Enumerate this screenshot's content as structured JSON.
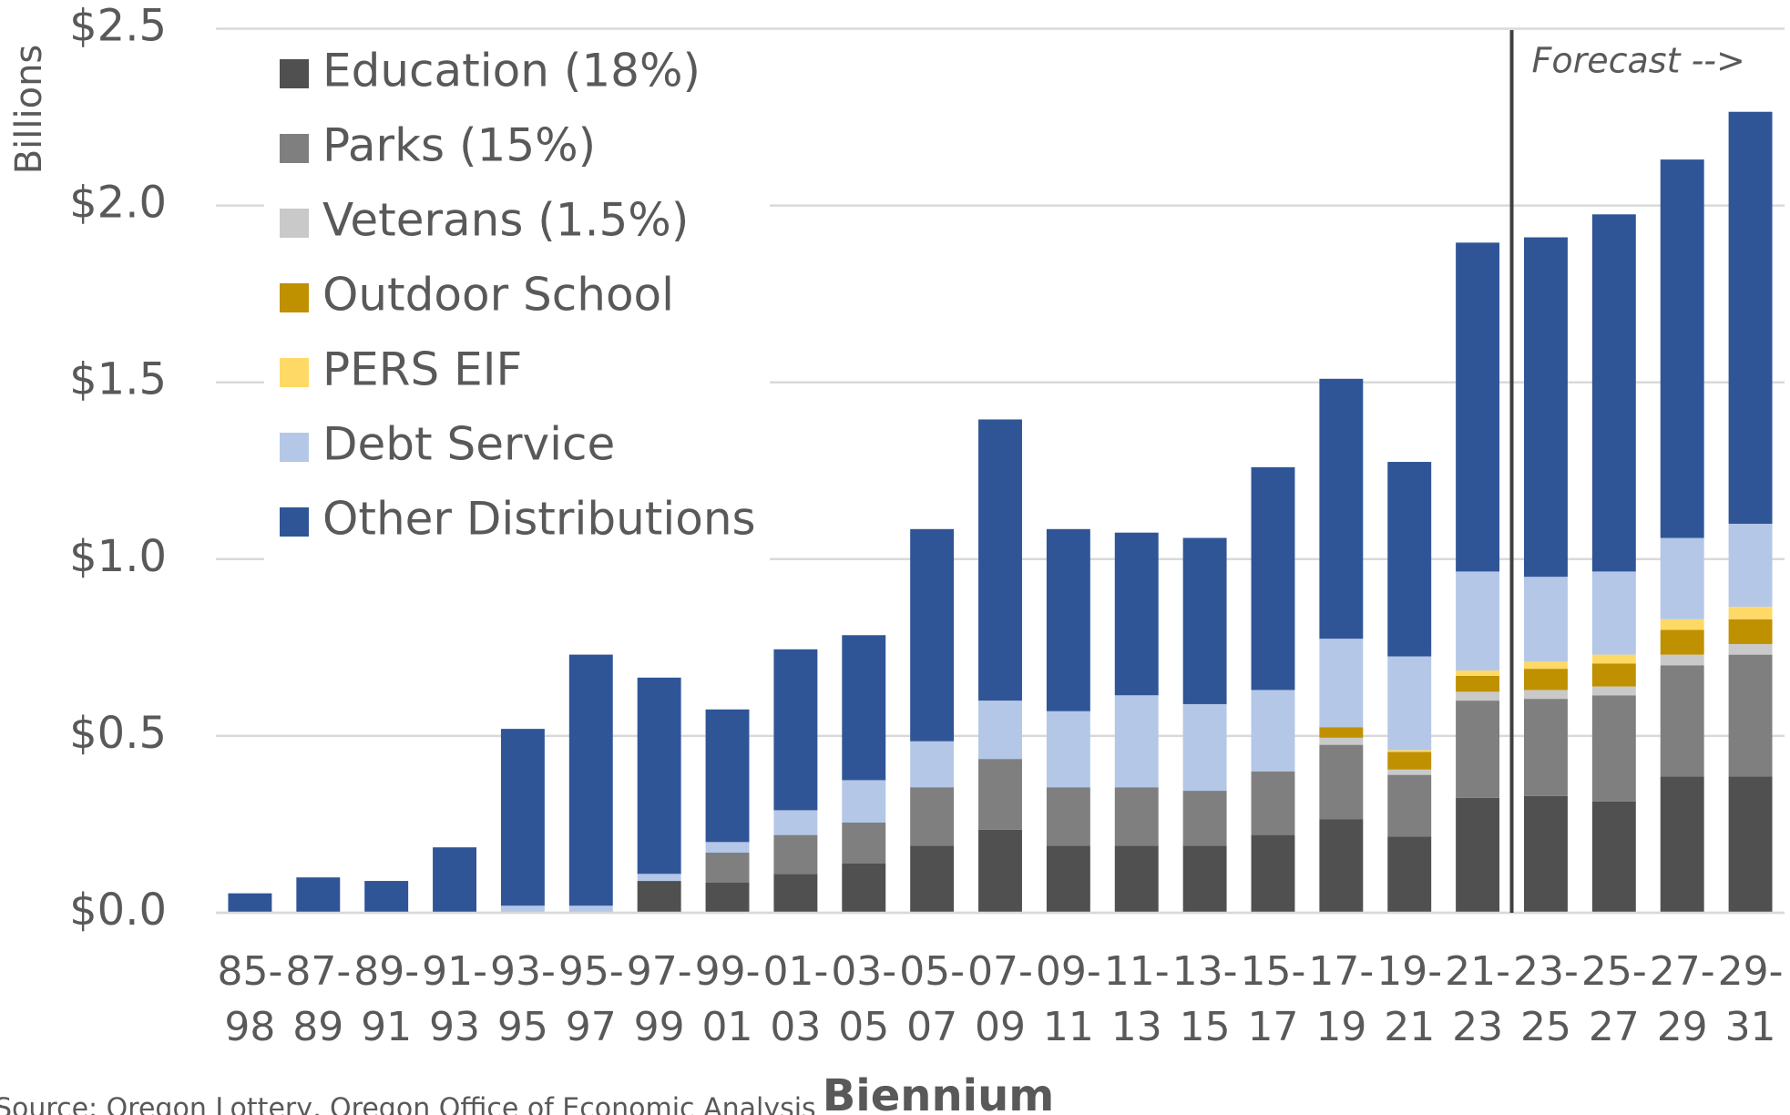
{
  "chart_data": {
    "type": "stacked_bar",
    "ylabel": "Billions",
    "xlabel": "Biennium",
    "annotation": "Forecast -->",
    "source": "Source: Oregon Lottery, Oregon Office of Economic Analysis",
    "categories": [
      [
        "85-",
        "98"
      ],
      [
        "87-",
        "89"
      ],
      [
        "89-",
        "91"
      ],
      [
        "91-",
        "93"
      ],
      [
        "93-",
        "95"
      ],
      [
        "95-",
        "97"
      ],
      [
        "97-",
        "99"
      ],
      [
        "99-",
        "01"
      ],
      [
        "01-",
        "03"
      ],
      [
        "03-",
        "05"
      ],
      [
        "05-",
        "07"
      ],
      [
        "07-",
        "09"
      ],
      [
        "09-",
        "11"
      ],
      [
        "11-",
        "13"
      ],
      [
        "13-",
        "15"
      ],
      [
        "15-",
        "17"
      ],
      [
        "17-",
        "19"
      ],
      [
        "19-",
        "21"
      ],
      [
        "21-",
        "23"
      ],
      [
        "23-",
        "25"
      ],
      [
        "25-",
        "27"
      ],
      [
        "27-",
        "29"
      ],
      [
        "29-",
        "31"
      ]
    ],
    "series": [
      {
        "name": "Education (18%)",
        "color": "#505050",
        "values": [
          0,
          0,
          0,
          0,
          0,
          0,
          0.09,
          0.085,
          0.11,
          0.14,
          0.19,
          0.235,
          0.19,
          0.19,
          0.19,
          0.22,
          0.265,
          0.215,
          0.325,
          0.33,
          0.315,
          0.385,
          0.385
        ]
      },
      {
        "name": "Parks (15%)",
        "color": "#7f7f7f",
        "values": [
          0,
          0,
          0,
          0,
          0,
          0,
          0,
          0.085,
          0.11,
          0.115,
          0.165,
          0.2,
          0.165,
          0.165,
          0.155,
          0.18,
          0.21,
          0.175,
          0.275,
          0.275,
          0.3,
          0.315,
          0.345
        ]
      },
      {
        "name": "Veterans (1.5%)",
        "color": "#c9c9c9",
        "values": [
          0,
          0,
          0,
          0,
          0,
          0,
          0,
          0,
          0,
          0,
          0,
          0,
          0,
          0,
          0,
          0,
          0.02,
          0.015,
          0.025,
          0.025,
          0.025,
          0.03,
          0.03
        ]
      },
      {
        "name": "Outdoor School",
        "color": "#bf9000",
        "values": [
          0,
          0,
          0,
          0,
          0,
          0,
          0,
          0,
          0,
          0,
          0,
          0,
          0,
          0,
          0,
          0,
          0.03,
          0.05,
          0.045,
          0.06,
          0.065,
          0.07,
          0.07
        ]
      },
      {
        "name": "PERS EIF",
        "color": "#ffd966",
        "values": [
          0,
          0,
          0,
          0,
          0,
          0,
          0,
          0,
          0,
          0,
          0,
          0,
          0,
          0,
          0,
          0,
          0,
          0.005,
          0.015,
          0.02,
          0.025,
          0.03,
          0.035
        ]
      },
      {
        "name": "Debt Service",
        "color": "#b4c7e7",
        "values": [
          0,
          0,
          0,
          0,
          0.02,
          0.02,
          0.02,
          0.03,
          0.07,
          0.12,
          0.13,
          0.165,
          0.215,
          0.26,
          0.245,
          0.23,
          0.25,
          0.265,
          0.28,
          0.24,
          0.235,
          0.23,
          0.235
        ]
      },
      {
        "name": "Other Distributions",
        "color": "#2f5597",
        "values": [
          0.055,
          0.1,
          0.09,
          0.185,
          0.5,
          0.71,
          0.555,
          0.375,
          0.455,
          0.41,
          0.6,
          0.795,
          0.515,
          0.46,
          0.47,
          0.63,
          0.735,
          0.55,
          0.93,
          0.96,
          1.01,
          1.07,
          1.165
        ]
      }
    ],
    "ylim": [
      0,
      2.5
    ],
    "yticks": [
      {
        "value": 0,
        "label": "$0.0"
      },
      {
        "value": 0.5,
        "label": "$0.5"
      },
      {
        "value": 1,
        "label": "$1.0"
      },
      {
        "value": 1.5,
        "label": "$1.5"
      },
      {
        "value": 2,
        "label": "$2.0"
      },
      {
        "value": 2.5,
        "label": "$2.5"
      }
    ],
    "grid": true
  }
}
